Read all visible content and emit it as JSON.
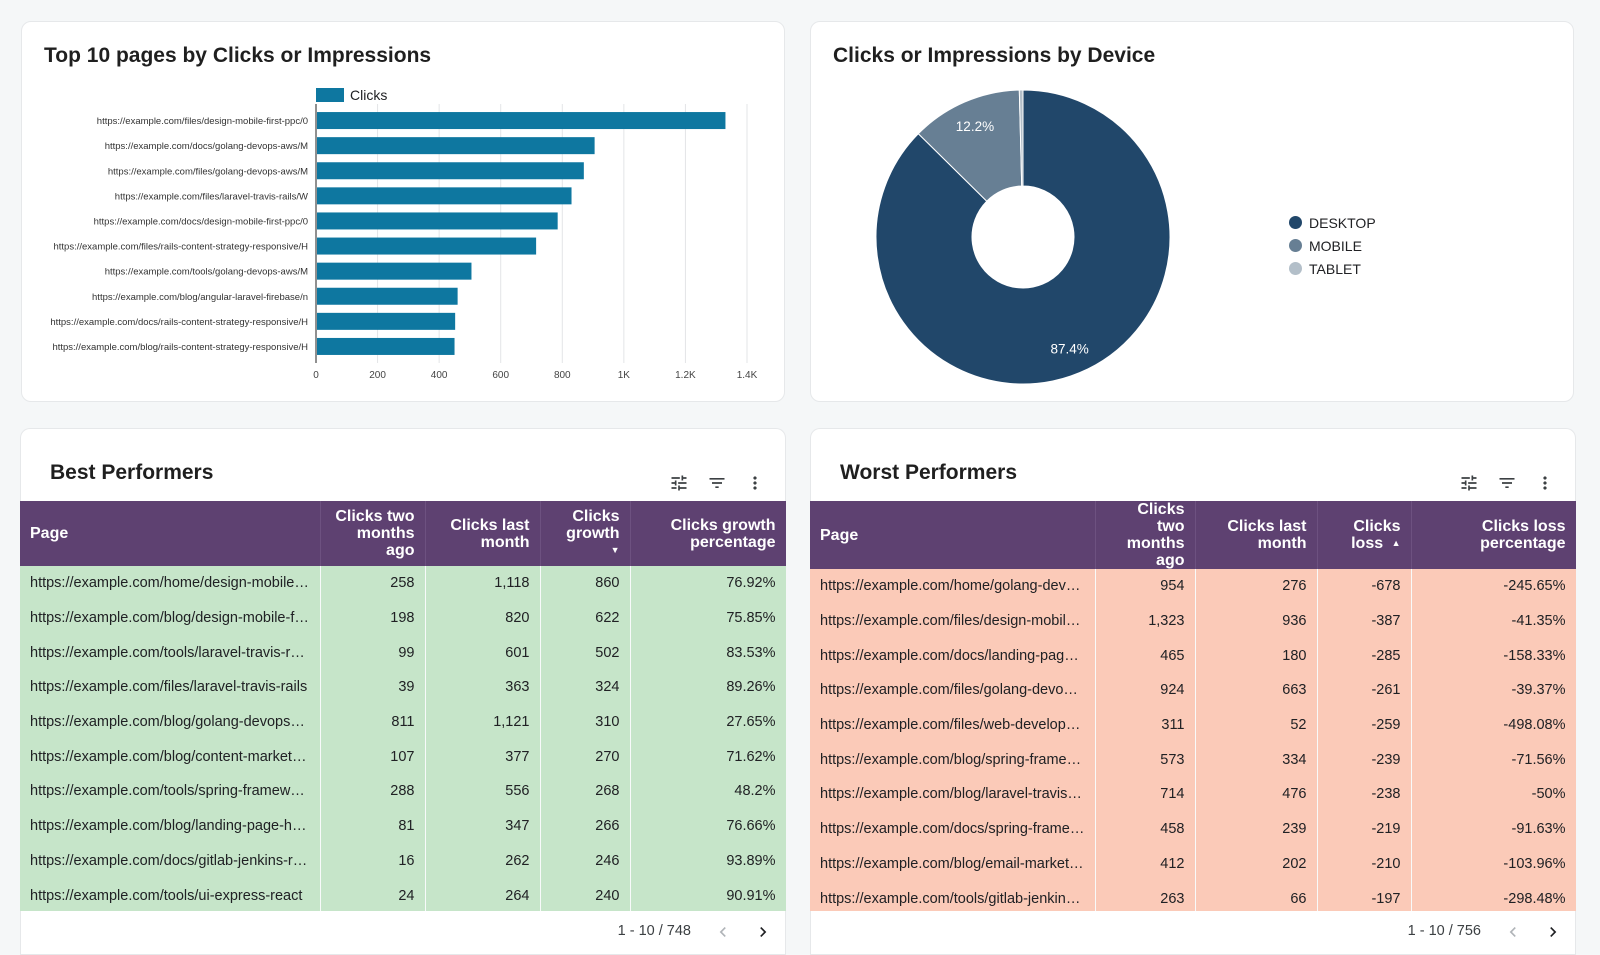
{
  "bar_card": {
    "title": "Top 10 pages by Clicks or Impressions"
  },
  "pie_card": {
    "title": "Clicks or Impressions by Device"
  },
  "chart_data": [
    {
      "type": "bar",
      "orientation": "horizontal",
      "title": "Top 10 pages by Clicks or Impressions",
      "legend": [
        "Clicks"
      ],
      "categories": [
        "https://example.com/files/design-mobile-first-ppc/0",
        "https://example.com/docs/golang-devops-aws/M",
        "https://example.com/files/golang-devops-aws/M",
        "https://example.com/files/laravel-travis-rails/W",
        "https://example.com/docs/design-mobile-first-ppc/0",
        "https://example.com/files/rails-content-strategy-responsive/H",
        "https://example.com/tools/golang-devops-aws/M",
        "https://example.com/blog/angular-laravel-firebase/n",
        "https://example.com/docs/rails-content-strategy-responsive/H",
        "https://example.com/blog/rails-content-strategy-responsive/H"
      ],
      "values": [
        1330,
        905,
        870,
        830,
        785,
        715,
        505,
        460,
        452,
        450
      ],
      "xlim": [
        0,
        1400
      ],
      "ticks": [
        0,
        200,
        400,
        600,
        800,
        1000,
        1200,
        1400
      ],
      "tick_labels": [
        "0",
        "200",
        "400",
        "600",
        "800",
        "1K",
        "1.2K",
        "1.4K"
      ],
      "grid": true,
      "color": "#0e77a0"
    },
    {
      "type": "pie",
      "title": "Clicks or Impressions by Device",
      "donut": true,
      "labels": [
        "DESKTOP",
        "MOBILE",
        "TABLET"
      ],
      "values": [
        87.4,
        12.2,
        0.4
      ],
      "value_labels": [
        "87.4%",
        "12.2%",
        ""
      ],
      "colors": [
        "#21476a",
        "#677f94",
        "#b3bfc9"
      ],
      "legend": "right"
    }
  ],
  "best": {
    "title": "Best Performers",
    "headers": [
      "Page",
      "Clicks two months ago",
      "Clicks last month",
      "Clicks growth",
      "Clicks growth percentage"
    ],
    "sort_indicator": "▼",
    "rows": [
      [
        "https://example.com/home/design-mobile-first-ppc",
        "258",
        "1,118",
        "860",
        "76.92%"
      ],
      [
        "https://example.com/blog/design-mobile-first-ppc",
        "198",
        "820",
        "622",
        "75.85%"
      ],
      [
        "https://example.com/tools/laravel-travis-rails",
        "99",
        "601",
        "502",
        "83.53%"
      ],
      [
        "https://example.com/files/laravel-travis-rails",
        "39",
        "363",
        "324",
        "89.26%"
      ],
      [
        "https://example.com/blog/golang-devops-aws",
        "811",
        "1,121",
        "310",
        "27.65%"
      ],
      [
        "https://example.com/blog/content-marketing",
        "107",
        "377",
        "270",
        "71.62%"
      ],
      [
        "https://example.com/tools/spring-framework",
        "288",
        "556",
        "268",
        "48.2%"
      ],
      [
        "https://example.com/blog/landing-page-heroes",
        "81",
        "347",
        "266",
        "76.66%"
      ],
      [
        "https://example.com/docs/gitlab-jenkins-react",
        "16",
        "262",
        "246",
        "93.89%"
      ],
      [
        "https://example.com/tools/ui-express-react",
        "24",
        "264",
        "240",
        "90.91%"
      ]
    ],
    "pager": "1 - 10 / 748"
  },
  "worst": {
    "title": "Worst Performers",
    "headers": [
      "Page",
      "Clicks two months ago",
      "Clicks last month",
      "Clicks loss",
      "Clicks loss percentage"
    ],
    "sort_indicator": "▲",
    "rows": [
      [
        "https://example.com/home/golang-devops-aws",
        "954",
        "276",
        "-678",
        "-245.65%"
      ],
      [
        "https://example.com/files/design-mobile-first",
        "1,323",
        "936",
        "-387",
        "-41.35%"
      ],
      [
        "https://example.com/docs/landing-page-heroes",
        "465",
        "180",
        "-285",
        "-158.33%"
      ],
      [
        "https://example.com/files/golang-devops-aws",
        "924",
        "663",
        "-261",
        "-39.37%"
      ],
      [
        "https://example.com/files/web-development",
        "311",
        "52",
        "-259",
        "-498.08%"
      ],
      [
        "https://example.com/blog/spring-framework",
        "573",
        "334",
        "-239",
        "-71.56%"
      ],
      [
        "https://example.com/blog/laravel-travis-rails",
        "714",
        "476",
        "-238",
        "-50%"
      ],
      [
        "https://example.com/docs/spring-framework",
        "458",
        "239",
        "-219",
        "-91.63%"
      ],
      [
        "https://example.com/blog/email-marketing",
        "412",
        "202",
        "-210",
        "-103.96%"
      ],
      [
        "https://example.com/tools/gitlab-jenkins-react",
        "263",
        "66",
        "-197",
        "-298.48%"
      ]
    ],
    "pager": "1 - 10 / 756"
  },
  "icons": {
    "tune": "tune-icon",
    "filter": "filter-icon",
    "more": "more-vert-icon",
    "prev": "chevron-left-icon",
    "next": "chevron-right-icon"
  }
}
